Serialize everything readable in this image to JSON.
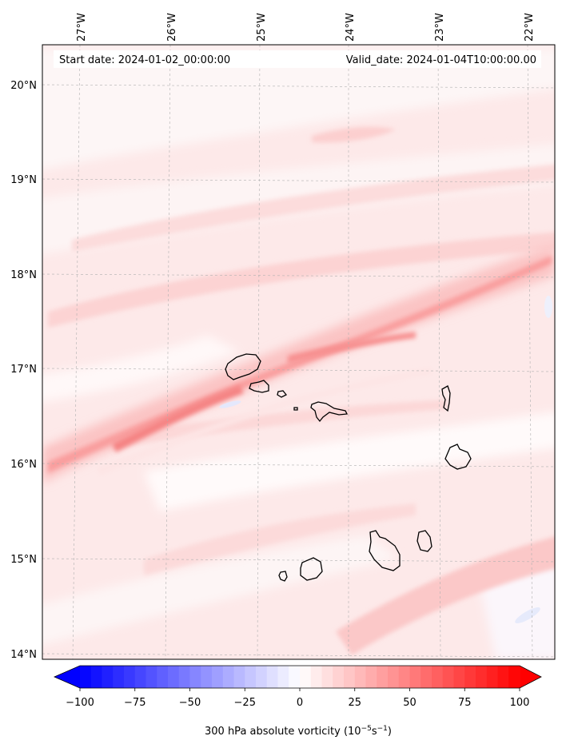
{
  "header": {
    "start_date": "Start date: 2024-01-02_00:00:00",
    "valid_date": "Valid_date: 2024-01-04T10:00:00.00"
  },
  "longitude_labels": [
    "27°W",
    "26°W",
    "25°W",
    "24°W",
    "23°W",
    "22°W"
  ],
  "latitude_labels": [
    "20°N",
    "19°N",
    "18°N",
    "17°N",
    "16°N",
    "15°N",
    "14°N"
  ],
  "field": {
    "variable": "300 hPa absolute vorticity",
    "band_axis": "ENE-trending vorticity band through the northern islands, reaching about 16.0°N at 27.3°W and 18.2°N at 21.8°W",
    "peak_value_estimate": 50
  },
  "colorbar": {
    "ticks": [
      "−100",
      "−75",
      "−50",
      "−25",
      "0",
      "25",
      "50",
      "75",
      "100"
    ],
    "tick_values": [
      -100,
      -75,
      -50,
      -25,
      0,
      25,
      50,
      75,
      100
    ],
    "vmin": -100,
    "vmax": 100,
    "levels": 41,
    "label_main": "300 hPa absolute vorticity (10",
    "label_exp1": "−5",
    "label_mid": "s",
    "label_exp2": "−1",
    "label_end": ")",
    "color_negative": "#0000ff",
    "color_zero": "#ffffff",
    "color_positive": "#ff0000"
  }
}
